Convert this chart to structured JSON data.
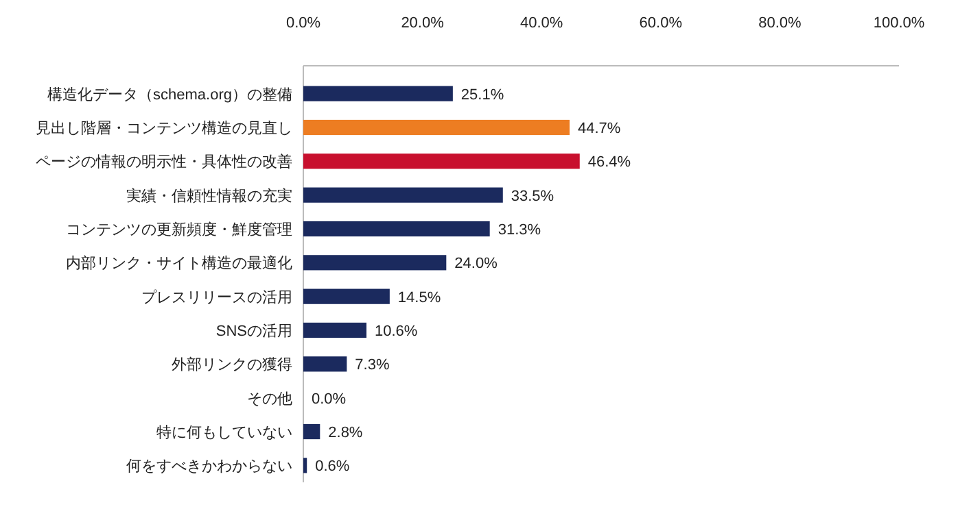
{
  "chart_data": {
    "type": "bar",
    "orientation": "horizontal",
    "categories": [
      "構造化データ（schema.org）の整備",
      "見出し階層・コンテンツ構造の見直し",
      "ページの情報の明示性・具体性の改善",
      "実績・信頼性情報の充実",
      "コンテンツの更新頻度・鮮度管理",
      "内部リンク・サイト構造の最適化",
      "プレスリリースの活用",
      "SNSの活用",
      "外部リンクの獲得",
      "その他",
      "特に何もしていない",
      "何をすべきかわからない"
    ],
    "values": [
      25.1,
      44.7,
      46.4,
      33.5,
      31.3,
      24.0,
      14.5,
      10.6,
      7.3,
      0.0,
      2.8,
      0.6
    ],
    "colors": [
      "#1b2a5e",
      "#ed7d22",
      "#c8102e",
      "#1b2a5e",
      "#1b2a5e",
      "#1b2a5e",
      "#1b2a5e",
      "#1b2a5e",
      "#1b2a5e",
      "#1b2a5e",
      "#1b2a5e",
      "#1b2a5e"
    ],
    "value_labels": [
      "25.1%",
      "44.7%",
      "46.4%",
      "33.5%",
      "31.3%",
      "24.0%",
      "14.5%",
      "10.6%",
      "7.3%",
      "0.0%",
      "2.8%",
      "0.6%"
    ],
    "xlim": [
      0,
      100
    ],
    "xticks": [
      {
        "value": 0,
        "label": "0.0%"
      },
      {
        "value": 20,
        "label": "20.0%"
      },
      {
        "value": 40,
        "label": "40.0%"
      },
      {
        "value": 60,
        "label": "60.0%"
      },
      {
        "value": 80,
        "label": "80.0%"
      },
      {
        "value": 100,
        "label": "100.0%"
      }
    ],
    "grid": false
  }
}
